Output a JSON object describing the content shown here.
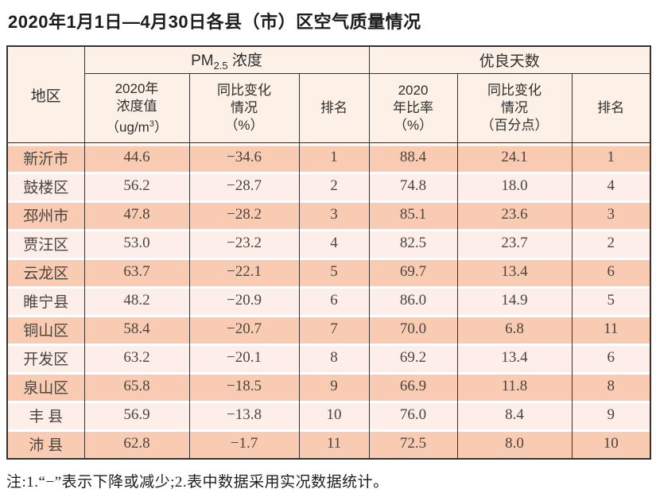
{
  "title": "2020年1月1日—4月30日各县（市）区空气质量情况",
  "table": {
    "columns": {
      "region": "地区",
      "pm_group": {
        "prefix": "PM",
        "subscript": "2.5",
        "suffix": " 浓度"
      },
      "good_group": "优良天数",
      "pm_value": {
        "line1": "2020年",
        "line2": "浓度值",
        "unit_prefix": "（ug/m",
        "unit_sup": "3",
        "unit_suffix": "）"
      },
      "pm_change": {
        "line1": "同比变化",
        "line2": "情况",
        "line3": "（%）"
      },
      "pm_rank": "排名",
      "good_rate": {
        "line1": "2020",
        "line2": "年比率",
        "line3": "（%）"
      },
      "good_change": {
        "line1": "同比变化",
        "line2": "情况",
        "line3": "（百分点）"
      },
      "good_rank": "排名"
    },
    "rows": [
      {
        "region": "新沂市",
        "pm_value": "44.6",
        "pm_change": "−34.6",
        "pm_rank": "1",
        "good_rate": "88.4",
        "good_change": "24.1",
        "good_rank": "1"
      },
      {
        "region": "鼓楼区",
        "pm_value": "56.2",
        "pm_change": "−28.7",
        "pm_rank": "2",
        "good_rate": "74.8",
        "good_change": "18.0",
        "good_rank": "4"
      },
      {
        "region": "邳州市",
        "pm_value": "47.8",
        "pm_change": "−28.2",
        "pm_rank": "3",
        "good_rate": "85.1",
        "good_change": "23.6",
        "good_rank": "3"
      },
      {
        "region": "贾汪区",
        "pm_value": "53.0",
        "pm_change": "−23.2",
        "pm_rank": "4",
        "good_rate": "82.5",
        "good_change": "23.7",
        "good_rank": "2"
      },
      {
        "region": "云龙区",
        "pm_value": "63.7",
        "pm_change": "−22.1",
        "pm_rank": "5",
        "good_rate": "69.7",
        "good_change": "13.4",
        "good_rank": "6"
      },
      {
        "region": "睢宁县",
        "pm_value": "48.2",
        "pm_change": "−20.9",
        "pm_rank": "6",
        "good_rate": "86.0",
        "good_change": "14.9",
        "good_rank": "5"
      },
      {
        "region": "铜山区",
        "pm_value": "58.4",
        "pm_change": "−20.7",
        "pm_rank": "7",
        "good_rate": "70.0",
        "good_change": "6.8",
        "good_rank": "11"
      },
      {
        "region": "开发区",
        "pm_value": "63.2",
        "pm_change": "−20.1",
        "pm_rank": "8",
        "good_rate": "69.2",
        "good_change": "13.4",
        "good_rank": "6"
      },
      {
        "region": "泉山区",
        "pm_value": "65.8",
        "pm_change": "−18.5",
        "pm_rank": "9",
        "good_rate": "66.9",
        "good_change": "11.8",
        "good_rank": "8"
      },
      {
        "region": "丰 县",
        "pm_value": "56.9",
        "pm_change": "−13.8",
        "pm_rank": "10",
        "good_rate": "76.0",
        "good_change": "8.4",
        "good_rank": "9"
      },
      {
        "region": "沛 县",
        "pm_value": "62.8",
        "pm_change": "−1.7",
        "pm_rank": "11",
        "good_rate": "72.5",
        "good_change": "8.0",
        "good_rank": "10"
      }
    ]
  },
  "note": "注:1.“−”表示下降或减少;2.表中数据采用实况数据统计。",
  "colors": {
    "row_salmon": "#f8cbb2",
    "row_light": "#fdeee9",
    "header_bg": "#fcf0e7",
    "border": "#38322e"
  }
}
